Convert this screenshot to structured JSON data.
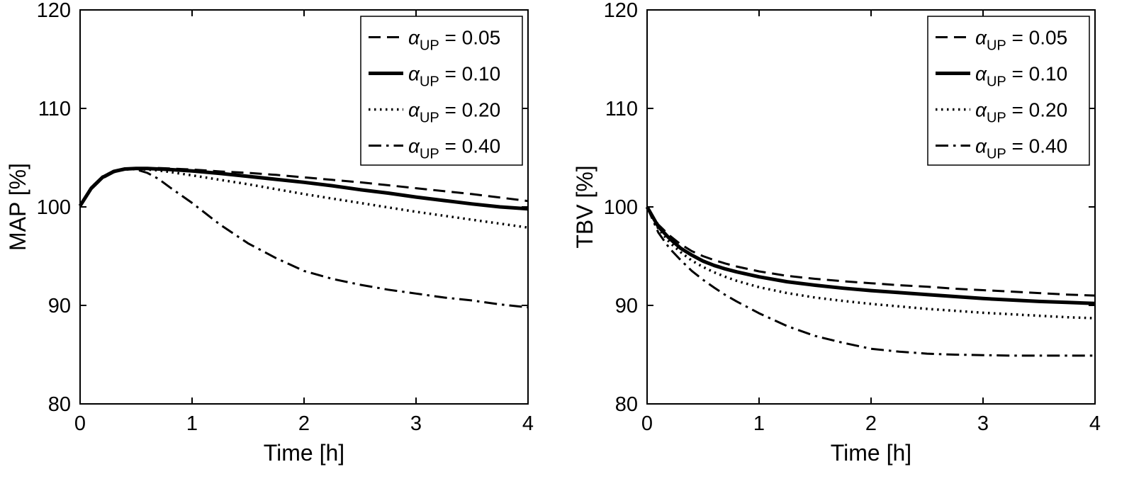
{
  "figure": {
    "background": "#ffffff",
    "line_color": "#000000",
    "text_color": "#000000"
  },
  "chart_data": [
    {
      "type": "line",
      "title": "",
      "xlabel": "Time [h]",
      "ylabel": "MAP [%]",
      "xlim": [
        0,
        4
      ],
      "ylim": [
        80,
        120
      ],
      "xticks": [
        0,
        1,
        2,
        3,
        4
      ],
      "yticks": [
        80,
        90,
        100,
        110,
        120
      ],
      "grid": false,
      "legend_position": "top-right",
      "x": [
        0,
        0.1,
        0.2,
        0.3,
        0.4,
        0.5,
        0.6,
        0.7,
        0.8,
        1.0,
        1.25,
        1.5,
        1.75,
        2.0,
        2.25,
        2.5,
        2.75,
        3.0,
        3.25,
        3.5,
        3.75,
        4.0
      ],
      "series": [
        {
          "name": "alpha_UP = 0.05",
          "style": "dashed",
          "legend": {
            "symbol": "α",
            "sub": "UP",
            "rest": " = 0.05"
          },
          "y": [
            100.2,
            101.8,
            102.9,
            103.5,
            103.8,
            103.9,
            103.95,
            103.95,
            103.9,
            103.8,
            103.6,
            103.45,
            103.25,
            103.0,
            102.75,
            102.5,
            102.2,
            101.9,
            101.6,
            101.3,
            100.95,
            100.6
          ]
        },
        {
          "name": "alpha_UP = 0.10",
          "style": "solid",
          "legend": {
            "symbol": "α",
            "sub": "UP",
            "rest": " = 0.10"
          },
          "y": [
            100.1,
            101.9,
            103.0,
            103.6,
            103.85,
            103.9,
            103.9,
            103.85,
            103.8,
            103.65,
            103.4,
            103.1,
            102.8,
            102.5,
            102.15,
            101.75,
            101.4,
            101.0,
            100.65,
            100.3,
            100.0,
            99.8
          ]
        },
        {
          "name": "alpha_UP = 0.20",
          "style": "dotted",
          "legend": {
            "symbol": "α",
            "sub": "UP",
            "rest": " = 0.20"
          },
          "y": [
            100.1,
            101.9,
            103.0,
            103.6,
            103.8,
            103.85,
            103.8,
            103.7,
            103.55,
            103.2,
            102.75,
            102.3,
            101.8,
            101.3,
            100.85,
            100.4,
            99.95,
            99.5,
            99.1,
            98.7,
            98.3,
            97.9
          ]
        },
        {
          "name": "alpha_UP = 0.40",
          "style": "dashdot",
          "legend": {
            "symbol": "α",
            "sub": "UP",
            "rest": " = 0.40"
          },
          "y": [
            100.1,
            102.0,
            103.1,
            103.65,
            103.85,
            103.8,
            103.45,
            102.85,
            102.0,
            100.4,
            98.2,
            96.3,
            94.8,
            93.5,
            92.7,
            92.1,
            91.6,
            91.2,
            90.8,
            90.5,
            90.1,
            89.8
          ]
        }
      ]
    },
    {
      "type": "line",
      "title": "",
      "xlabel": "Time [h]",
      "ylabel": "TBV [%]",
      "xlim": [
        0,
        4
      ],
      "ylim": [
        80,
        120
      ],
      "xticks": [
        0,
        1,
        2,
        3,
        4
      ],
      "yticks": [
        80,
        90,
        100,
        110,
        120
      ],
      "grid": false,
      "legend_position": "top-right",
      "x": [
        0,
        0.1,
        0.2,
        0.3,
        0.4,
        0.5,
        0.6,
        0.7,
        0.8,
        1.0,
        1.25,
        1.5,
        1.75,
        2.0,
        2.25,
        2.5,
        2.75,
        3.0,
        3.25,
        3.5,
        3.75,
        4.0
      ],
      "series": [
        {
          "name": "alpha_UP = 0.05",
          "style": "dashed",
          "legend": {
            "symbol": "α",
            "sub": "UP",
            "rest": " = 0.05"
          },
          "y": [
            100,
            98.2,
            97.1,
            96.2,
            95.5,
            95.0,
            94.6,
            94.25,
            93.95,
            93.45,
            93.0,
            92.7,
            92.45,
            92.25,
            92.05,
            91.9,
            91.7,
            91.55,
            91.4,
            91.25,
            91.1,
            91.0
          ]
        },
        {
          "name": "alpha_UP = 0.10",
          "style": "solid",
          "legend": {
            "symbol": "α",
            "sub": "UP",
            "rest": " = 0.10"
          },
          "y": [
            100,
            98.0,
            96.8,
            95.8,
            95.1,
            94.5,
            94.05,
            93.7,
            93.4,
            92.9,
            92.4,
            92.05,
            91.75,
            91.5,
            91.3,
            91.1,
            90.9,
            90.7,
            90.55,
            90.4,
            90.3,
            90.2
          ]
        },
        {
          "name": "alpha_UP = 0.20",
          "style": "dotted",
          "legend": {
            "symbol": "α",
            "sub": "UP",
            "rest": " = 0.20"
          },
          "y": [
            100,
            97.8,
            96.4,
            95.4,
            94.55,
            93.9,
            93.35,
            92.9,
            92.5,
            91.85,
            91.25,
            90.8,
            90.45,
            90.15,
            89.9,
            89.65,
            89.45,
            89.25,
            89.1,
            88.95,
            88.8,
            88.7
          ]
        },
        {
          "name": "alpha_UP = 0.40",
          "style": "dashdot",
          "legend": {
            "symbol": "α",
            "sub": "UP",
            "rest": " = 0.40"
          },
          "y": [
            100,
            97.4,
            95.8,
            94.6,
            93.5,
            92.6,
            91.8,
            91.05,
            90.4,
            89.2,
            87.9,
            86.9,
            86.2,
            85.6,
            85.3,
            85.1,
            85.0,
            84.95,
            84.9,
            84.9,
            84.9,
            84.9
          ]
        }
      ]
    }
  ]
}
